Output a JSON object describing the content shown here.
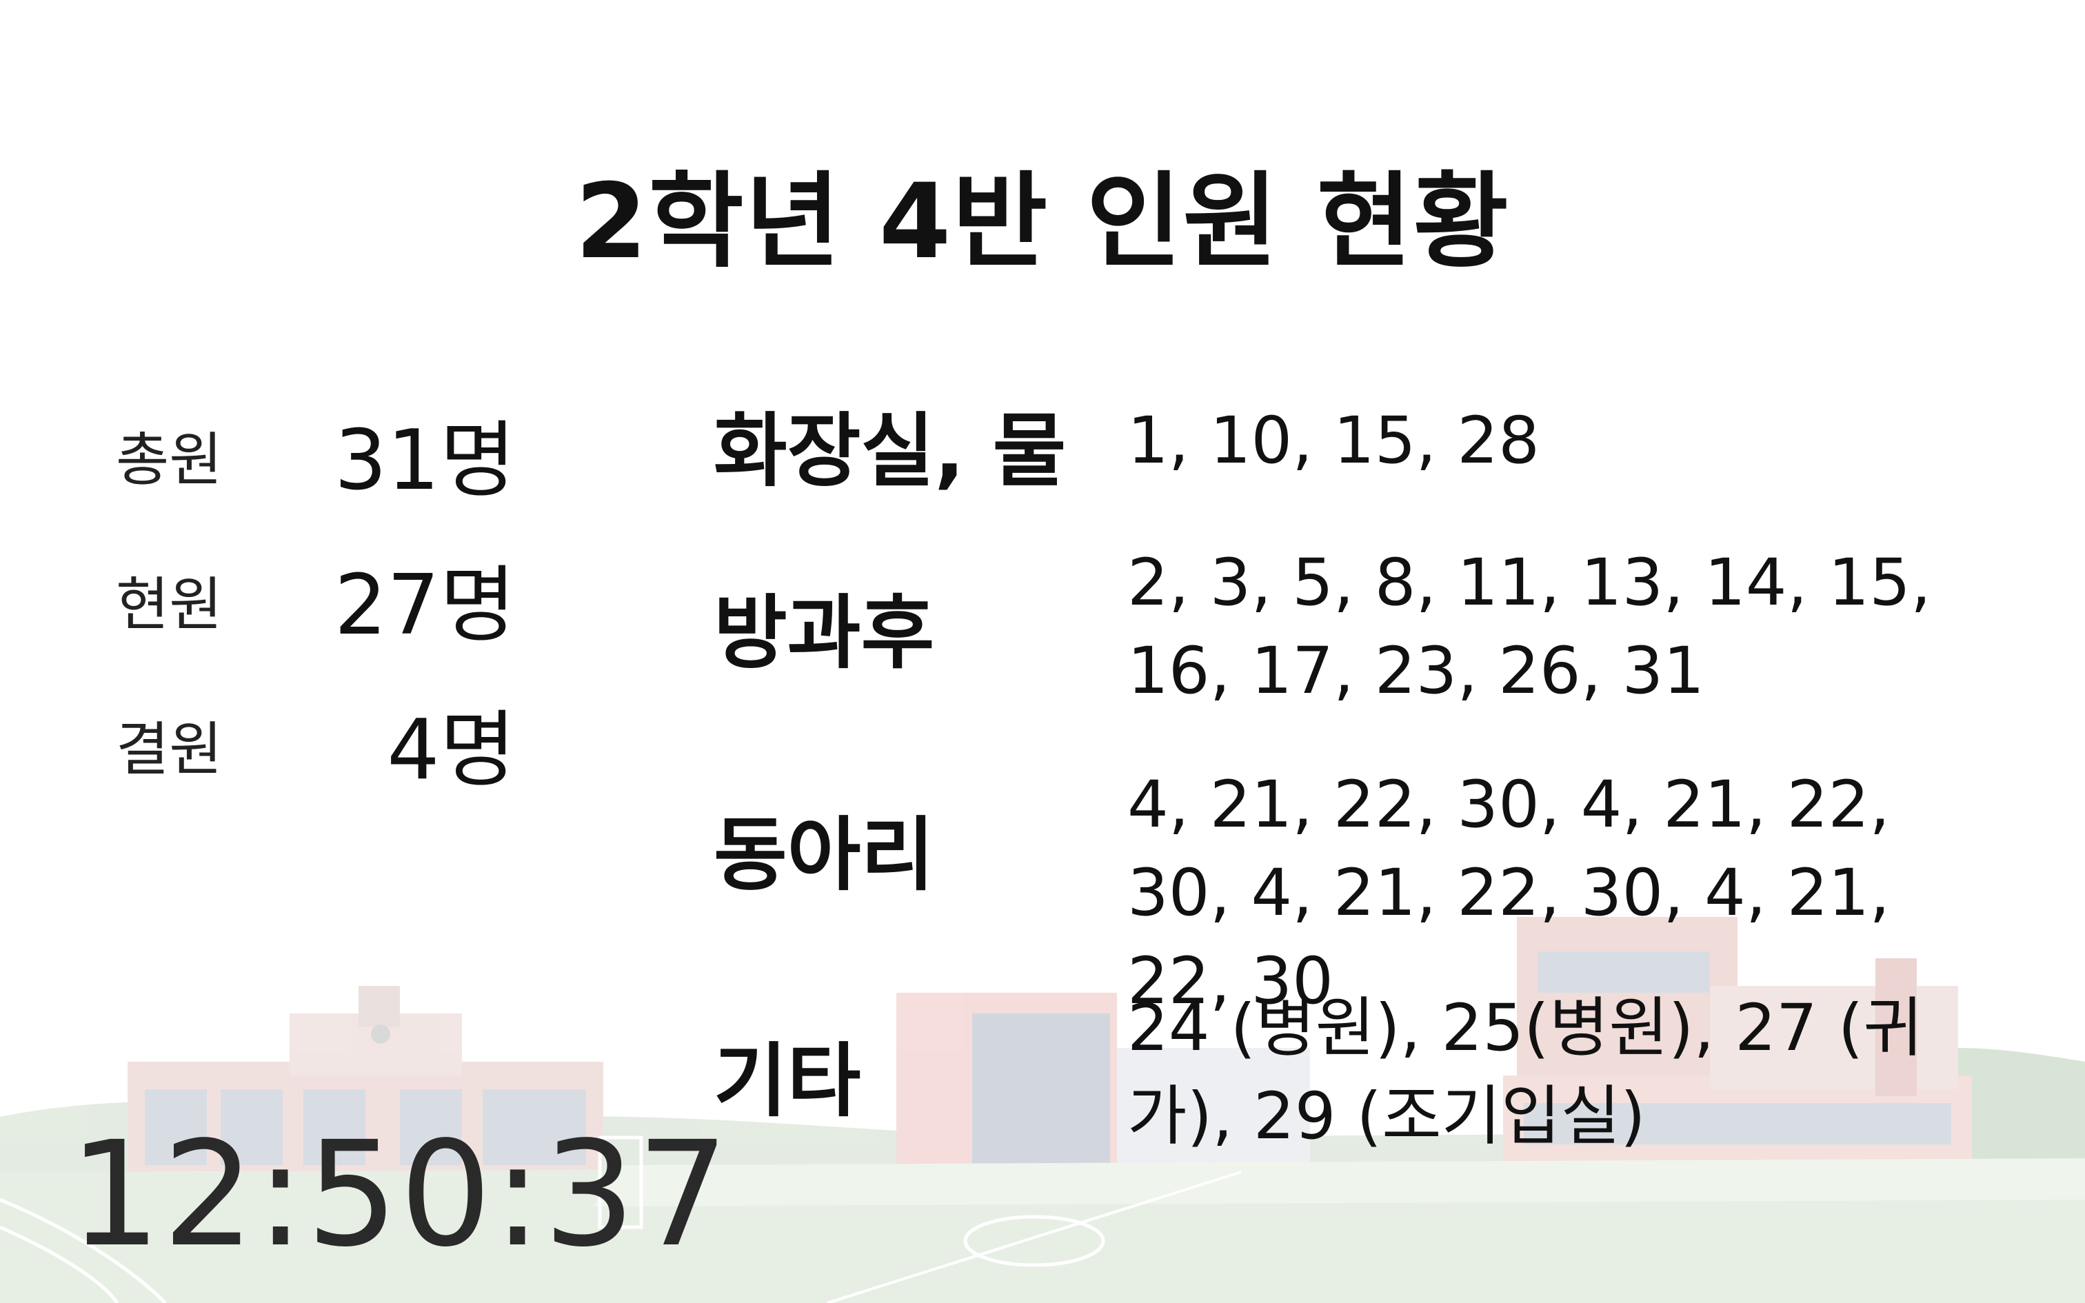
{
  "title": "2학년 4반 인원 현황",
  "stats": [
    {
      "label": "총원",
      "value": "31명"
    },
    {
      "label": "현원",
      "value": "27명"
    },
    {
      "label": "결원",
      "value": "4명"
    }
  ],
  "categories": [
    {
      "label": "화장실, 물",
      "value": "1, 10, 15, 28"
    },
    {
      "label": "방과후",
      "value": "2, 3, 5, 8, 11, 13, 14, 15, 16, 17, 23, 26, 31"
    },
    {
      "label": "동아리",
      "value": "4, 21, 22, 30, 4, 21, 22, 30, 4, 21, 22, 30, 4, 21, 22, 30"
    },
    {
      "label": "기타",
      "value": "24 (병원), 25(병원), 27 (귀가), 29 (조기입실)"
    }
  ],
  "clock": "12:50:37"
}
